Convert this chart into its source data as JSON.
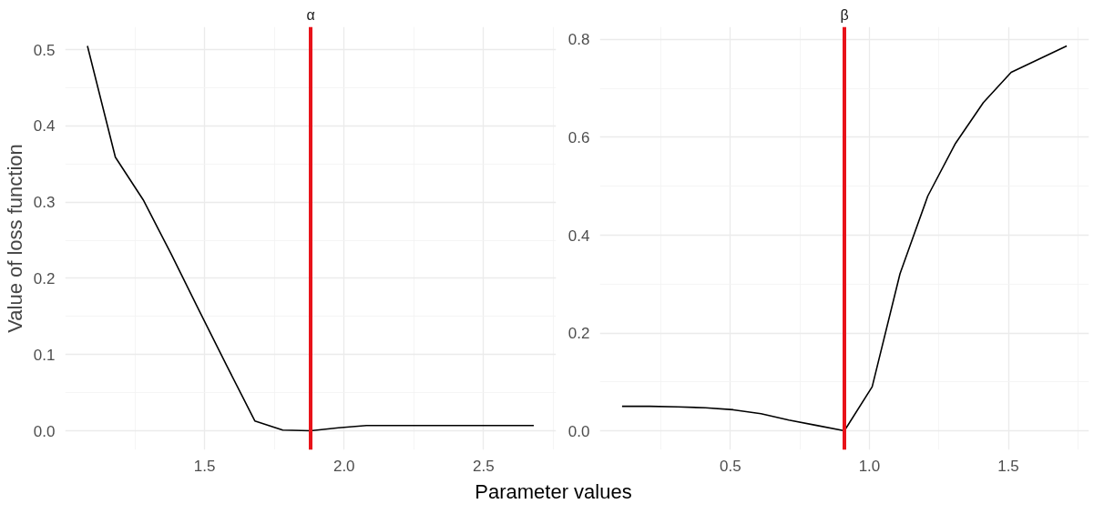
{
  "chart_data": [
    {
      "type": "line",
      "title": "α",
      "ylabel": "Value of loss function",
      "xlabel": "Parameter values",
      "x": [
        1.08,
        1.18,
        1.28,
        1.38,
        1.48,
        1.58,
        1.68,
        1.78,
        1.88,
        1.98,
        2.08,
        2.18,
        2.28,
        2.38,
        2.48,
        2.58,
        2.68
      ],
      "series": [
        {
          "color": "#000000",
          "values": [
            0.505,
            0.359,
            0.303,
            0.232,
            0.158,
            0.085,
            0.013,
            0.001,
            0.0,
            0.004,
            0.007,
            0.007,
            0.007,
            0.007,
            0.007,
            0.007,
            0.007
          ]
        }
      ],
      "xlim": [
        1.0,
        2.76
      ],
      "xticks": [
        1.5,
        {
          "value": 2,
          "label": "2.0"
        },
        2.5
      ],
      "ylim": [
        -0.025,
        0.53
      ],
      "yticks": [
        {
          "value": 0,
          "label": "0.0"
        },
        0.1,
        0.2,
        0.3,
        0.4,
        0.5
      ],
      "grid": true,
      "line_style": "solid",
      "ref_lines": [
        {
          "axis": "x",
          "value": 1.88,
          "color": "#e8131a"
        }
      ]
    },
    {
      "type": "line",
      "title": "β",
      "x": [
        0.11,
        0.21,
        0.31,
        0.41,
        0.51,
        0.61,
        0.71,
        0.81,
        0.91,
        1.01,
        1.11,
        1.21,
        1.31,
        1.41,
        1.51,
        1.61,
        1.71
      ],
      "series": [
        {
          "color": "#000000",
          "values": [
            0.05,
            0.05,
            0.049,
            0.047,
            0.043,
            0.035,
            0.022,
            0.011,
            0.0,
            0.09,
            0.321,
            0.48,
            0.588,
            0.671,
            0.733,
            0.76,
            0.787
          ]
        }
      ],
      "xlim": [
        0.03,
        1.79
      ],
      "xticks": [
        0.5,
        {
          "value": 1,
          "label": "1.0"
        },
        1.5
      ],
      "ylim": [
        -0.039,
        0.826
      ],
      "yticks": [
        {
          "value": 0,
          "label": "0.0"
        },
        0.2,
        0.4,
        0.6,
        0.8
      ],
      "grid": true,
      "line_style": "solid",
      "ref_lines": [
        {
          "axis": "x",
          "value": 0.91,
          "color": "#e8131a"
        }
      ]
    }
  ]
}
